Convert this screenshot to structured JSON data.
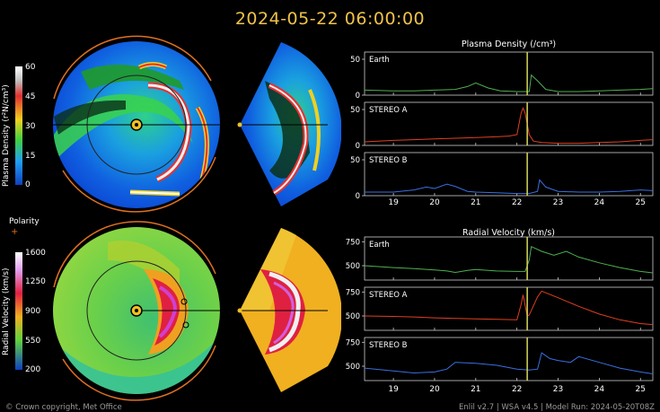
{
  "timestamp": "2024-05-22 06:00:00",
  "footer_left": "© Crown copyright, Met Office",
  "footer_right": "Enlil v2.7 | WSA v4.5 | Model Run: 2024-05-20T08Z",
  "colors": {
    "accent": "#f0c24a",
    "earth": "#4fb04f",
    "stereo_a": "#e04020",
    "stereo_b": "#3a6fe0",
    "marker": "#d8d85a"
  },
  "density_colorbar": {
    "label": "Plasma Density (r²N/cm³)",
    "ticks": [
      "60",
      "45",
      "30",
      "15",
      "0"
    ]
  },
  "polarity": {
    "label": "Polarity",
    "symbol": "+"
  },
  "velocity_colorbar": {
    "label": "Radial Velocity (km/s)",
    "ticks": [
      "1600",
      "1250",
      "900",
      "550",
      "200"
    ]
  },
  "chart_data": [
    {
      "type": "line",
      "title": "Plasma Density (/cm³)",
      "x_ticks": [
        "19",
        "20",
        "21",
        "22",
        "23",
        "24",
        "25"
      ],
      "xlim": [
        18.3,
        25.3
      ],
      "marker_x": 22.25,
      "panels": [
        {
          "name": "Earth",
          "color": "#4fb04f",
          "ylim": [
            0,
            60
          ],
          "y_ticks": [
            "50",
            "0"
          ],
          "x": [
            18.3,
            19,
            19.5,
            20,
            20.5,
            20.8,
            21,
            21.3,
            21.6,
            22,
            22.3,
            22.35,
            22.5,
            22.7,
            23,
            23.5,
            24,
            24.5,
            25,
            25.3
          ],
          "values": [
            7,
            6,
            6,
            7,
            8,
            12,
            17,
            10,
            6,
            5,
            5,
            28,
            20,
            8,
            5,
            5,
            6,
            7,
            8,
            9
          ]
        },
        {
          "name": "STEREO A",
          "color": "#e04020",
          "ylim": [
            0,
            60
          ],
          "y_ticks": [
            "50",
            "0"
          ],
          "x": [
            18.3,
            19,
            19.5,
            20,
            20.5,
            21,
            21.5,
            21.8,
            22,
            22.1,
            22.15,
            22.2,
            22.3,
            22.4,
            22.6,
            23,
            23.5,
            24,
            24.5,
            25,
            25.3
          ],
          "values": [
            5,
            7,
            8,
            9,
            10,
            11,
            12,
            13,
            15,
            45,
            52,
            45,
            15,
            6,
            4,
            3,
            3,
            4,
            5,
            7,
            8
          ]
        },
        {
          "name": "STEREO B",
          "color": "#3a6fe0",
          "ylim": [
            0,
            60
          ],
          "y_ticks": [
            "50",
            "0"
          ],
          "x": [
            18.3,
            19,
            19.5,
            19.8,
            20,
            20.3,
            20.5,
            20.8,
            21,
            21.5,
            22,
            22.3,
            22.5,
            22.55,
            22.7,
            23,
            23.5,
            24,
            24.5,
            25,
            25.3
          ],
          "values": [
            5,
            5,
            8,
            12,
            10,
            16,
            13,
            6,
            5,
            4,
            3,
            3,
            6,
            22,
            12,
            6,
            5,
            5,
            6,
            8,
            7
          ]
        }
      ]
    },
    {
      "type": "line",
      "title": "Radial Velocity (km/s)",
      "x_ticks": [
        "19",
        "20",
        "21",
        "22",
        "23",
        "24",
        "25"
      ],
      "xlim": [
        18.3,
        25.3
      ],
      "marker_x": 22.25,
      "panels": [
        {
          "name": "Earth",
          "color": "#4fb04f",
          "ylim": [
            350,
            800
          ],
          "y_ticks": [
            "750",
            "500"
          ],
          "x": [
            18.3,
            19,
            19.5,
            20,
            20.3,
            20.5,
            20.8,
            21,
            21.5,
            22,
            22.2,
            22.3,
            22.35,
            22.6,
            22.9,
            23.2,
            23.5,
            24,
            24.5,
            25,
            25.3
          ],
          "values": [
            500,
            480,
            470,
            455,
            445,
            430,
            450,
            460,
            445,
            440,
            440,
            560,
            700,
            650,
            610,
            650,
            590,
            530,
            480,
            440,
            425
          ]
        },
        {
          "name": "STEREO A",
          "color": "#e04020",
          "ylim": [
            350,
            800
          ],
          "y_ticks": [
            "750",
            "500"
          ],
          "x": [
            18.3,
            19,
            19.5,
            20,
            20.5,
            21,
            21.5,
            22,
            22.1,
            22.15,
            22.25,
            22.3,
            22.5,
            22.6,
            23,
            23.5,
            24,
            24.5,
            25,
            25.3
          ],
          "values": [
            500,
            495,
            490,
            480,
            475,
            470,
            465,
            460,
            620,
            720,
            500,
            510,
            700,
            760,
            690,
            600,
            520,
            460,
            420,
            410
          ]
        },
        {
          "name": "STEREO B",
          "color": "#3a6fe0",
          "ylim": [
            350,
            800
          ],
          "y_ticks": [
            "750",
            "500"
          ],
          "x": [
            18.3,
            19,
            19.5,
            20,
            20.3,
            20.5,
            21,
            21.5,
            22,
            22.3,
            22.5,
            22.6,
            22.8,
            23,
            23.3,
            23.5,
            24,
            24.5,
            25,
            25.3
          ],
          "values": [
            480,
            450,
            430,
            440,
            470,
            540,
            530,
            510,
            470,
            460,
            470,
            640,
            580,
            560,
            540,
            600,
            540,
            480,
            440,
            420
          ]
        }
      ]
    }
  ]
}
